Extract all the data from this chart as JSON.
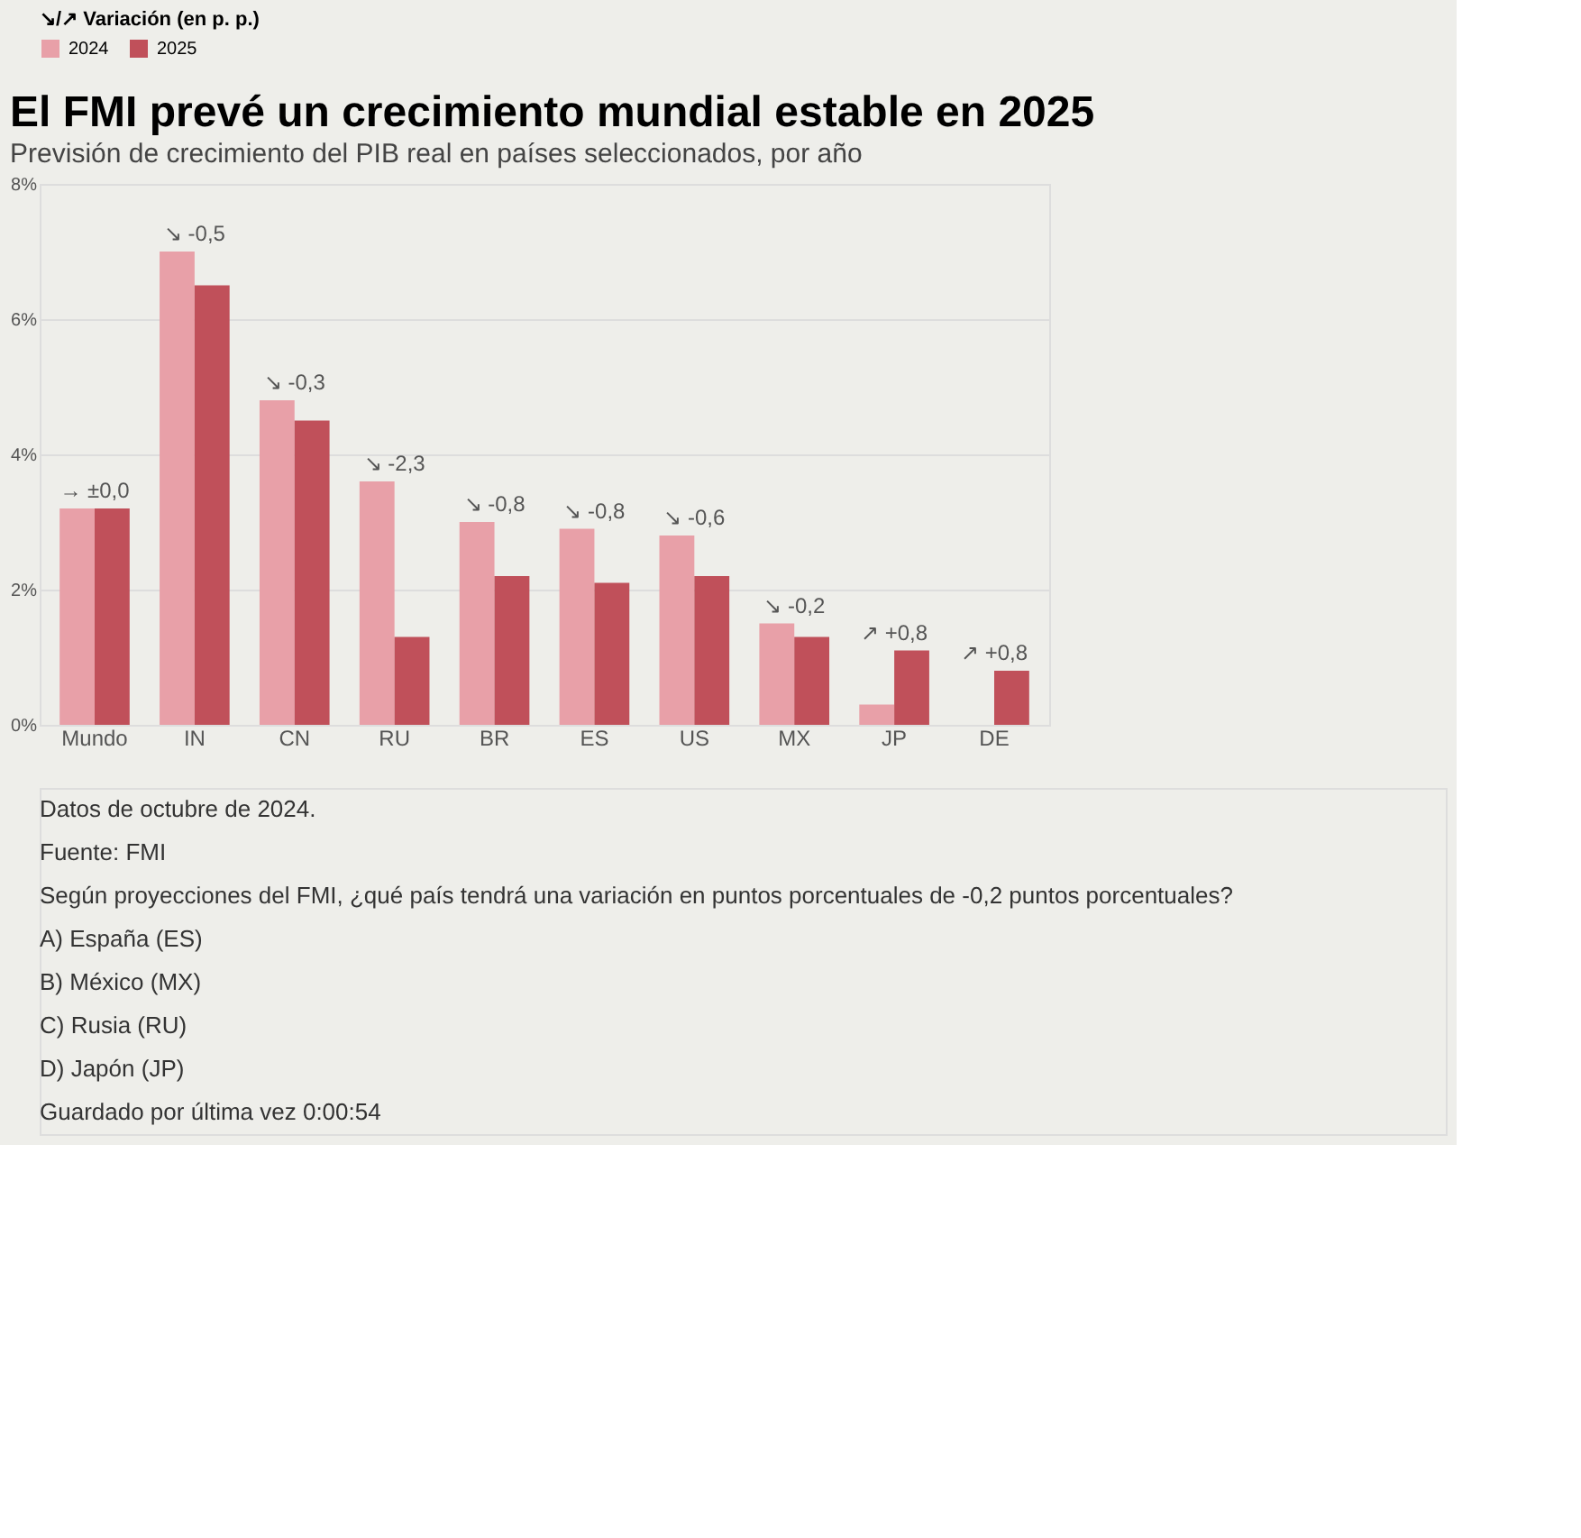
{
  "chart_data": {
    "type": "bar",
    "title": "El FMI prevé un crecimiento mundial estable en 2025",
    "subtitle": "Previsión de crecimiento del PIB real en países seleccionados, por año",
    "legend_title": "↘/↗ Variación (en p. p.)",
    "categories": [
      "Mundo",
      "IN",
      "CN",
      "RU",
      "BR",
      "ES",
      "US",
      "MX",
      "JP",
      "DE"
    ],
    "series": [
      {
        "name": "2024",
        "color": "#e8a0a8",
        "values": [
          3.2,
          7.0,
          4.8,
          3.6,
          3.0,
          2.9,
          2.8,
          1.5,
          0.3,
          0.0
        ]
      },
      {
        "name": "2025",
        "color": "#c0505a",
        "values": [
          3.2,
          6.5,
          4.5,
          1.3,
          2.2,
          2.1,
          2.2,
          1.3,
          1.1,
          0.8
        ]
      }
    ],
    "ylim": [
      0,
      8
    ],
    "yticks": [
      {
        "value": 0,
        "label": "0%"
      },
      {
        "value": 2,
        "label": "2%"
      },
      {
        "value": 4,
        "label": "4%"
      },
      {
        "value": 6,
        "label": "6%"
      },
      {
        "value": 8,
        "label": "8%"
      }
    ],
    "grid": "y",
    "legend": "top",
    "annotations": [
      {
        "text": "→ ±0,0",
        "x": "Mundo",
        "y": 3.2
      },
      {
        "text": "↘ -0,5",
        "x": "IN",
        "y": 7.0
      },
      {
        "text": "↘ -0,3",
        "x": "CN",
        "y": 4.8
      },
      {
        "text": "↘ -2,3",
        "x": "RU",
        "y": 3.6
      },
      {
        "text": "↘ -0,8",
        "x": "BR",
        "y": 3.0
      },
      {
        "text": "↘ -0,8",
        "x": "ES",
        "y": 2.9
      },
      {
        "text": "↘ -0,6",
        "x": "US",
        "y": 2.8
      },
      {
        "text": "↘ -0,2",
        "x": "MX",
        "y": 1.5
      },
      {
        "text": "↗ +0,8",
        "x": "JP",
        "y": 1.1
      },
      {
        "text": "↗ +0,8",
        "x": "DE",
        "y": 0.8
      },
      "Datos de octubre de 2024.",
      "Fuente: FMI",
      "Según proyecciones del FMI, ¿qué país tendrá una variación en puntos porcentuales de -0,2 puntos porcentuales?",
      "A) España (ES)",
      "B) México (MX)",
      "C) Rusia (RU)",
      "D) Japón (JP)",
      "Guardado por última vez 0:00:54"
    ]
  }
}
